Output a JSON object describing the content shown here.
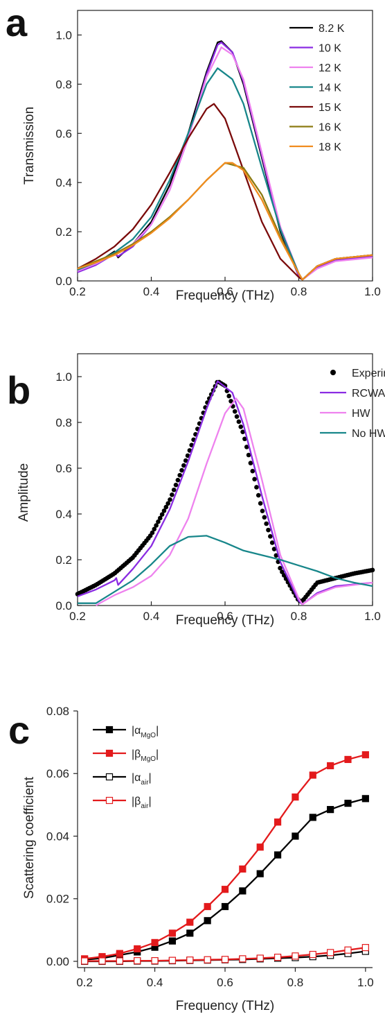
{
  "panels": [
    {
      "letter": "a"
    },
    {
      "letter": "b"
    },
    {
      "letter": "c"
    }
  ],
  "chart_data": [
    {
      "type": "line",
      "xlabel": "Frequency (THz)",
      "ylabel": "Transmission",
      "xlim": [
        0.2,
        1.0
      ],
      "ylim": [
        0.0,
        1.1
      ],
      "xticks": [
        "0.2",
        "0.4",
        "0.6",
        "0.8",
        "1.0"
      ],
      "xtick_values": [
        0.2,
        0.4,
        0.6,
        0.8,
        1.0
      ],
      "yticks": [
        "0.0",
        "0.2",
        "0.4",
        "0.6",
        "0.8",
        "1.0"
      ],
      "ytick_values": [
        0.0,
        0.2,
        0.4,
        0.6,
        0.8,
        1.0
      ],
      "legend_position": "top-right",
      "series": [
        {
          "name": "8.2 K",
          "color": "#000000",
          "x": [
            0.2,
            0.25,
            0.3,
            0.31,
            0.35,
            0.4,
            0.45,
            0.5,
            0.55,
            0.58,
            0.59,
            0.62,
            0.65,
            0.7,
            0.75,
            0.8,
            0.81,
            0.85,
            0.9,
            1.0
          ],
          "y": [
            0.04,
            0.07,
            0.12,
            0.095,
            0.15,
            0.24,
            0.39,
            0.6,
            0.85,
            0.97,
            0.975,
            0.93,
            0.8,
            0.5,
            0.2,
            0.02,
            0.005,
            0.06,
            0.09,
            0.105
          ]
        },
        {
          "name": "10 K",
          "color": "#8a2be2",
          "x": [
            0.2,
            0.25,
            0.3,
            0.31,
            0.35,
            0.4,
            0.45,
            0.5,
            0.55,
            0.58,
            0.59,
            0.62,
            0.65,
            0.7,
            0.75,
            0.8,
            0.81,
            0.85,
            0.9,
            1.0
          ],
          "y": [
            0.035,
            0.065,
            0.11,
            0.1,
            0.14,
            0.23,
            0.37,
            0.58,
            0.84,
            0.96,
            0.97,
            0.93,
            0.81,
            0.51,
            0.21,
            0.02,
            0.005,
            0.055,
            0.085,
            0.1
          ]
        },
        {
          "name": "12 K",
          "color": "#ee82ee",
          "x": [
            0.2,
            0.25,
            0.3,
            0.35,
            0.4,
            0.45,
            0.5,
            0.55,
            0.59,
            0.62,
            0.65,
            0.7,
            0.75,
            0.8,
            0.81,
            0.85,
            0.9,
            1.0
          ],
          "y": [
            0.04,
            0.07,
            0.11,
            0.15,
            0.23,
            0.37,
            0.58,
            0.83,
            0.95,
            0.92,
            0.82,
            0.52,
            0.22,
            0.03,
            0.005,
            0.05,
            0.08,
            0.095
          ]
        },
        {
          "name": "14 K",
          "color": "#17868a",
          "x": [
            0.2,
            0.25,
            0.3,
            0.35,
            0.4,
            0.45,
            0.5,
            0.55,
            0.58,
            0.62,
            0.65,
            0.7,
            0.75,
            0.8,
            0.81,
            0.85,
            0.9,
            1.0
          ],
          "y": [
            0.045,
            0.075,
            0.115,
            0.17,
            0.26,
            0.41,
            0.6,
            0.8,
            0.865,
            0.82,
            0.72,
            0.46,
            0.21,
            0.03,
            0.005,
            0.06,
            0.09,
            0.105
          ]
        },
        {
          "name": "15 K",
          "color": "#7a0a0a",
          "x": [
            0.2,
            0.25,
            0.3,
            0.35,
            0.4,
            0.45,
            0.5,
            0.55,
            0.57,
            0.6,
            0.65,
            0.7,
            0.75,
            0.8,
            0.81,
            0.85,
            0.9,
            1.0
          ],
          "y": [
            0.05,
            0.09,
            0.14,
            0.21,
            0.31,
            0.44,
            0.58,
            0.7,
            0.72,
            0.66,
            0.45,
            0.24,
            0.09,
            0.015,
            0.005,
            0.06,
            0.09,
            0.105
          ]
        },
        {
          "name": "16 K",
          "color": "#8b7a10",
          "x": [
            0.2,
            0.25,
            0.3,
            0.35,
            0.4,
            0.45,
            0.5,
            0.55,
            0.6,
            0.65,
            0.7,
            0.75,
            0.8,
            0.81,
            0.85,
            0.9,
            1.0
          ],
          "y": [
            0.05,
            0.08,
            0.11,
            0.15,
            0.2,
            0.26,
            0.33,
            0.41,
            0.48,
            0.46,
            0.35,
            0.18,
            0.03,
            0.005,
            0.06,
            0.09,
            0.105
          ]
        },
        {
          "name": "18 K",
          "color": "#f08c1e",
          "x": [
            0.2,
            0.25,
            0.3,
            0.35,
            0.4,
            0.45,
            0.5,
            0.55,
            0.6,
            0.62,
            0.65,
            0.7,
            0.75,
            0.8,
            0.81,
            0.85,
            0.9,
            1.0
          ],
          "y": [
            0.05,
            0.075,
            0.105,
            0.145,
            0.195,
            0.255,
            0.33,
            0.41,
            0.48,
            0.48,
            0.45,
            0.33,
            0.17,
            0.03,
            0.005,
            0.06,
            0.09,
            0.105
          ]
        }
      ]
    },
    {
      "type": "line",
      "xlabel": "Frequency (THz)",
      "ylabel": "Amplitude",
      "xlim": [
        0.2,
        1.0
      ],
      "ylim": [
        0.0,
        1.1
      ],
      "xticks": [
        "0.2",
        "0.4",
        "0.6",
        "0.8",
        "1.0"
      ],
      "xtick_values": [
        0.2,
        0.4,
        0.6,
        0.8,
        1.0
      ],
      "yticks": [
        "0.0",
        "0.2",
        "0.4",
        "0.6",
        "0.8",
        "1.0"
      ],
      "ytick_values": [
        0.0,
        0.2,
        0.4,
        0.6,
        0.8,
        1.0
      ],
      "legend_position": "top-right",
      "series": [
        {
          "name": "Experiment",
          "color": "#000000",
          "style": "dots",
          "x": [
            0.2,
            0.25,
            0.3,
            0.35,
            0.4,
            0.45,
            0.5,
            0.55,
            0.58,
            0.6,
            0.65,
            0.7,
            0.75,
            0.8,
            0.81,
            0.85,
            0.9,
            0.95,
            1.0
          ],
          "y": [
            0.05,
            0.09,
            0.14,
            0.21,
            0.31,
            0.46,
            0.66,
            0.88,
            0.98,
            0.96,
            0.75,
            0.42,
            0.16,
            0.02,
            0.02,
            0.1,
            0.12,
            0.14,
            0.155
          ]
        },
        {
          "name": "RCWA",
          "color": "#8a2be2",
          "x": [
            0.2,
            0.25,
            0.3,
            0.305,
            0.31,
            0.35,
            0.4,
            0.45,
            0.5,
            0.55,
            0.58,
            0.62,
            0.65,
            0.7,
            0.75,
            0.8,
            0.81,
            0.85,
            0.9,
            1.0
          ],
          "y": [
            0.04,
            0.07,
            0.11,
            0.12,
            0.09,
            0.16,
            0.26,
            0.42,
            0.63,
            0.86,
            0.98,
            0.93,
            0.79,
            0.48,
            0.19,
            0.02,
            0.005,
            0.055,
            0.085,
            0.1
          ]
        },
        {
          "name": "HW",
          "color": "#ee82ee",
          "x": [
            0.25,
            0.26,
            0.3,
            0.35,
            0.4,
            0.45,
            0.5,
            0.55,
            0.6,
            0.63,
            0.65,
            0.7,
            0.75,
            0.8,
            0.81,
            0.85,
            0.9,
            1.0
          ],
          "y": [
            0.0,
            0.01,
            0.045,
            0.08,
            0.13,
            0.22,
            0.38,
            0.62,
            0.84,
            0.905,
            0.86,
            0.55,
            0.22,
            0.03,
            0.005,
            0.05,
            0.08,
            0.1
          ]
        },
        {
          "name": "No HW",
          "color": "#17868a",
          "x": [
            0.2,
            0.25,
            0.3,
            0.35,
            0.4,
            0.45,
            0.5,
            0.55,
            0.6,
            0.65,
            0.7,
            0.75,
            0.8,
            0.85,
            0.9,
            0.95,
            1.0
          ],
          "y": [
            0.01,
            0.01,
            0.06,
            0.11,
            0.18,
            0.26,
            0.3,
            0.305,
            0.275,
            0.24,
            0.22,
            0.2,
            0.175,
            0.15,
            0.12,
            0.1,
            0.085
          ]
        }
      ]
    },
    {
      "type": "line",
      "xlabel": "Frequency (THz)",
      "ylabel": "Scattering coefficient",
      "xlim": [
        0.18,
        1.02
      ],
      "ylim": [
        -0.002,
        0.08
      ],
      "xticks": [
        "0.2",
        "0.4",
        "0.6",
        "0.8",
        "1.0"
      ],
      "xtick_values": [
        0.2,
        0.4,
        0.6,
        0.8,
        1.0
      ],
      "yticks": [
        "0.00",
        "0.02",
        "0.04",
        "0.06",
        "0.08"
      ],
      "ytick_values": [
        0.0,
        0.02,
        0.04,
        0.06,
        0.08
      ],
      "legend_position": "top-left",
      "x": [
        0.2,
        0.25,
        0.3,
        0.35,
        0.4,
        0.45,
        0.5,
        0.55,
        0.6,
        0.65,
        0.7,
        0.75,
        0.8,
        0.85,
        0.9,
        0.95,
        1.0
      ],
      "series": [
        {
          "name": "|α",
          "sub": "MgO",
          "name_end": "|",
          "color": "#000000",
          "marker": "filled",
          "values": [
            0.0005,
            0.001,
            0.002,
            0.003,
            0.0045,
            0.0065,
            0.009,
            0.013,
            0.0175,
            0.0225,
            0.028,
            0.034,
            0.04,
            0.046,
            0.0485,
            0.0505,
            0.052
          ]
        },
        {
          "name": "|β",
          "sub": "MgO",
          "name_end": "|",
          "color": "#e31a1c",
          "marker": "filled",
          "values": [
            0.0008,
            0.0015,
            0.0025,
            0.004,
            0.006,
            0.009,
            0.0125,
            0.0175,
            0.023,
            0.0295,
            0.0365,
            0.0445,
            0.0525,
            0.0595,
            0.0625,
            0.0645,
            0.066
          ]
        },
        {
          "name": "|α",
          "sub": "air",
          "name_end": "|",
          "color": "#000000",
          "marker": "open",
          "values": [
            0.0,
            0.0,
            0.0,
            0.0001,
            0.0001,
            0.0002,
            0.0003,
            0.0004,
            0.0005,
            0.0006,
            0.0008,
            0.001,
            0.0012,
            0.0015,
            0.0019,
            0.0025,
            0.0032
          ]
        },
        {
          "name": "|β",
          "sub": "air",
          "name_end": "|",
          "color": "#e31a1c",
          "marker": "open",
          "values": [
            0.0001,
            0.0001,
            0.0001,
            0.0002,
            0.0002,
            0.0003,
            0.0004,
            0.0005,
            0.0006,
            0.0008,
            0.001,
            0.0013,
            0.0017,
            0.0022,
            0.0028,
            0.0036,
            0.0044
          ]
        }
      ]
    }
  ]
}
